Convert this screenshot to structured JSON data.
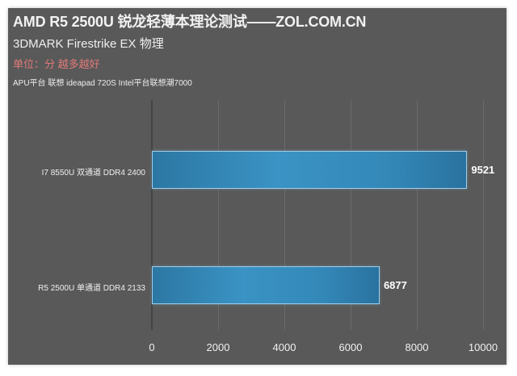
{
  "header": {
    "title": "AMD R5 2500U 锐龙轻薄本理论测试——ZOL.COM.CN",
    "subtitle": "3DMARK  Firestrike EX 物理",
    "unit": "单位：分 越多越好",
    "note": "APU平台 联想 ideapad 720S Intel平台联想潮7000"
  },
  "colors": {
    "background": "#595959",
    "bar": "#3388b8",
    "bar_border": "#9fcfee",
    "unit_text": "#e07a78"
  },
  "axis": {
    "ticks": [
      "0",
      "2000",
      "4000",
      "6000",
      "8000",
      "10000"
    ]
  },
  "bars": [
    {
      "label": "I7 8550U 双通道 DDR4 2400",
      "value": "9521"
    },
    {
      "label": "R5 2500U 单通道 DDR4 2133",
      "value": "6877"
    }
  ],
  "chart_data": {
    "type": "bar",
    "orientation": "horizontal",
    "title": "AMD R5 2500U 锐龙轻薄本理论测试——ZOL.COM.CN",
    "subtitle": "3DMARK Firestrike EX 物理",
    "annotations": [
      "单位：分 越多越好",
      "APU平台 联想 ideapad 720S Intel平台联想潮7000"
    ],
    "categories": [
      "I7 8550U 双通道 DDR4 2400",
      "R5 2500U 单通道 DDR4 2133"
    ],
    "values": [
      9521,
      6877
    ],
    "xlabel": "",
    "ylabel": "",
    "xlim": [
      0,
      10000
    ],
    "xticks": [
      0,
      2000,
      4000,
      6000,
      8000,
      10000
    ],
    "grid": true,
    "legend": null,
    "data_labels": true
  }
}
